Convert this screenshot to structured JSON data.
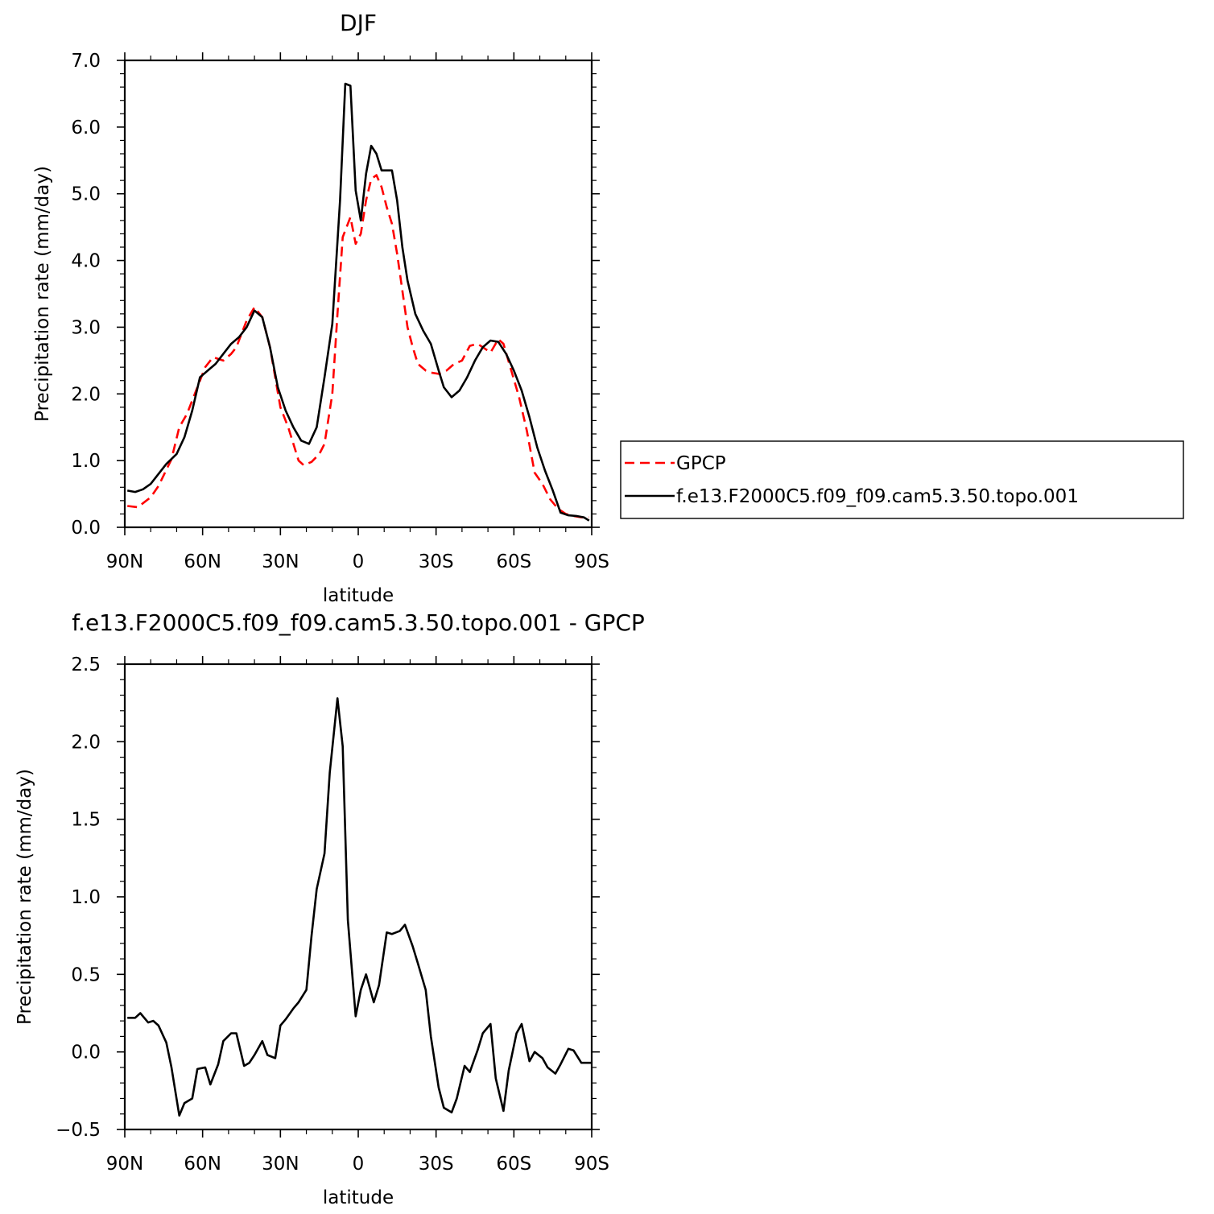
{
  "chart_data": [
    {
      "type": "line",
      "title": "DJF",
      "xlabel": "latitude",
      "ylabel": "Precipitation rate (mm/day)",
      "xlim": [
        -90,
        90
      ],
      "ylim": [
        0,
        7
      ],
      "xticks": [
        {
          "value": -90,
          "label": "90N"
        },
        {
          "value": -60,
          "label": "60N"
        },
        {
          "value": -30,
          "label": "30N"
        },
        {
          "value": 0,
          "label": "0"
        },
        {
          "value": 30,
          "label": "30S"
        },
        {
          "value": 60,
          "label": "60S"
        },
        {
          "value": 90,
          "label": "90S"
        }
      ],
      "yticks": [
        {
          "value": 0,
          "label": "0.0"
        },
        {
          "value": 1,
          "label": "1.0"
        },
        {
          "value": 2,
          "label": "2.0"
        },
        {
          "value": 3,
          "label": "3.0"
        },
        {
          "value": 4,
          "label": "4.0"
        },
        {
          "value": 5,
          "label": "5.0"
        },
        {
          "value": 6,
          "label": "6.0"
        },
        {
          "value": 7,
          "label": "7.0"
        }
      ],
      "grid": false,
      "legend": "right",
      "series": [
        {
          "name": "GPCP",
          "color": "#ff0000",
          "dash": "dashed",
          "x": [
            -89,
            -85,
            -80,
            -77,
            -72,
            -69,
            -66,
            -62,
            -59,
            -56,
            -52,
            -49,
            -47,
            -43,
            -40,
            -37,
            -34,
            -30,
            -27,
            -23,
            -21,
            -18,
            -15,
            -13,
            -10,
            -8,
            -6,
            -3,
            -1,
            1,
            3,
            5,
            7,
            9,
            11,
            13,
            15,
            17,
            19,
            21,
            23,
            26,
            28,
            31,
            34,
            37,
            40,
            43,
            46,
            48,
            51,
            54,
            56,
            59,
            62,
            65,
            68,
            71,
            74,
            77,
            80,
            83,
            86,
            89
          ],
          "y": [
            0.32,
            0.3,
            0.45,
            0.62,
            1.02,
            1.5,
            1.7,
            2.1,
            2.4,
            2.55,
            2.5,
            2.6,
            2.7,
            3.1,
            3.3,
            3.15,
            2.7,
            1.8,
            1.5,
            1.0,
            0.93,
            0.98,
            1.1,
            1.25,
            2.0,
            3.2,
            4.35,
            4.65,
            4.25,
            4.4,
            4.9,
            5.22,
            5.28,
            5.1,
            4.8,
            4.55,
            4.1,
            3.55,
            3.0,
            2.7,
            2.45,
            2.35,
            2.32,
            2.3,
            2.35,
            2.45,
            2.5,
            2.72,
            2.75,
            2.7,
            2.62,
            2.82,
            2.75,
            2.35,
            1.95,
            1.45,
            0.82,
            0.65,
            0.42,
            0.28,
            0.2,
            0.17,
            0.15,
            0.15
          ]
        },
        {
          "name": "f.e13.F2000C5.f09_f09.cam5.3.50.topo.001",
          "color": "#000000",
          "dash": "solid",
          "x": [
            -89,
            -86,
            -83,
            -80,
            -77,
            -74,
            -70,
            -67,
            -64,
            -61,
            -58,
            -55,
            -52,
            -49,
            -46,
            -43,
            -40,
            -37,
            -34,
            -31,
            -28,
            -25,
            -22,
            -19,
            -16,
            -13,
            -10,
            -7,
            -5,
            -3,
            -1,
            1,
            3,
            5,
            7,
            9,
            11,
            13,
            15,
            17,
            19,
            22,
            25,
            28,
            31,
            33,
            36,
            39,
            42,
            45,
            48,
            51,
            54,
            57,
            60,
            63,
            66,
            69,
            72,
            75,
            78,
            81,
            84,
            87,
            89
          ],
          "y": [
            0.55,
            0.53,
            0.57,
            0.65,
            0.8,
            0.95,
            1.1,
            1.35,
            1.75,
            2.25,
            2.35,
            2.45,
            2.6,
            2.75,
            2.85,
            3.0,
            3.25,
            3.15,
            2.7,
            2.1,
            1.75,
            1.5,
            1.3,
            1.25,
            1.5,
            2.25,
            3.05,
            4.9,
            6.65,
            6.62,
            5.05,
            4.6,
            5.3,
            5.72,
            5.6,
            5.35,
            5.35,
            5.35,
            4.9,
            4.2,
            3.7,
            3.2,
            2.95,
            2.75,
            2.35,
            2.1,
            1.95,
            2.05,
            2.25,
            2.5,
            2.7,
            2.8,
            2.78,
            2.6,
            2.35,
            2.05,
            1.65,
            1.2,
            0.85,
            0.55,
            0.22,
            0.18,
            0.17,
            0.15,
            0.1
          ]
        }
      ]
    },
    {
      "type": "line",
      "title": "f.e13.F2000C5.f09_f09.cam5.3.50.topo.001 - GPCP",
      "xlabel": "latitude",
      "ylabel": "Precipitation rate (mm/day)",
      "xlim": [
        -90,
        90
      ],
      "ylim": [
        -0.5,
        2.5
      ],
      "xticks": [
        {
          "value": -90,
          "label": "90N"
        },
        {
          "value": -60,
          "label": "60N"
        },
        {
          "value": -30,
          "label": "30N"
        },
        {
          "value": 0,
          "label": "0"
        },
        {
          "value": 30,
          "label": "30S"
        },
        {
          "value": 60,
          "label": "60S"
        },
        {
          "value": 90,
          "label": "90S"
        }
      ],
      "yticks": [
        {
          "value": -0.5,
          "label": "−0.5"
        },
        {
          "value": 0,
          "label": "0.0"
        },
        {
          "value": 0.5,
          "label": "0.5"
        },
        {
          "value": 1,
          "label": "1.0"
        },
        {
          "value": 1.5,
          "label": "1.5"
        },
        {
          "value": 2,
          "label": "2.0"
        },
        {
          "value": 2.5,
          "label": "2.5"
        }
      ],
      "grid": false,
      "series": [
        {
          "color": "#000000",
          "dash": "solid",
          "x": [
            -89,
            -86,
            -84,
            -81,
            -79,
            -77,
            -74,
            -72,
            -69,
            -67,
            -64,
            -62,
            -59,
            -57,
            -54,
            -52,
            -49,
            -47,
            -44,
            -42,
            -40,
            -37,
            -35,
            -32,
            -30,
            -28,
            -25,
            -23,
            -20,
            -18,
            -16,
            -13,
            -11,
            -8,
            -6,
            -4,
            -1,
            1,
            3,
            6,
            8,
            11,
            13,
            16,
            18,
            21,
            23,
            26,
            28,
            31,
            33,
            36,
            38,
            41,
            43,
            46,
            48,
            51,
            53,
            56,
            58,
            61,
            63,
            66,
            68,
            71,
            73,
            76,
            78,
            81,
            83,
            86,
            88,
            90
          ],
          "y": [
            0.22,
            0.22,
            0.25,
            0.19,
            0.2,
            0.17,
            0.06,
            -0.1,
            -0.41,
            -0.33,
            -0.3,
            -0.11,
            -0.1,
            -0.21,
            -0.08,
            0.07,
            0.12,
            0.12,
            -0.09,
            -0.07,
            -0.02,
            0.07,
            -0.02,
            -0.04,
            0.17,
            0.21,
            0.28,
            0.32,
            0.4,
            0.75,
            1.05,
            1.28,
            1.8,
            2.28,
            1.97,
            0.85,
            0.23,
            0.4,
            0.5,
            0.32,
            0.43,
            0.77,
            0.76,
            0.78,
            0.82,
            0.68,
            0.57,
            0.4,
            0.1,
            -0.23,
            -0.36,
            -0.39,
            -0.3,
            -0.09,
            -0.13,
            0.01,
            0.12,
            0.18,
            -0.17,
            -0.38,
            -0.12,
            0.12,
            0.18,
            -0.06,
            0.0,
            -0.04,
            -0.1,
            -0.14,
            -0.08,
            0.02,
            0.01,
            -0.07,
            -0.07,
            -0.07
          ]
        }
      ]
    }
  ]
}
